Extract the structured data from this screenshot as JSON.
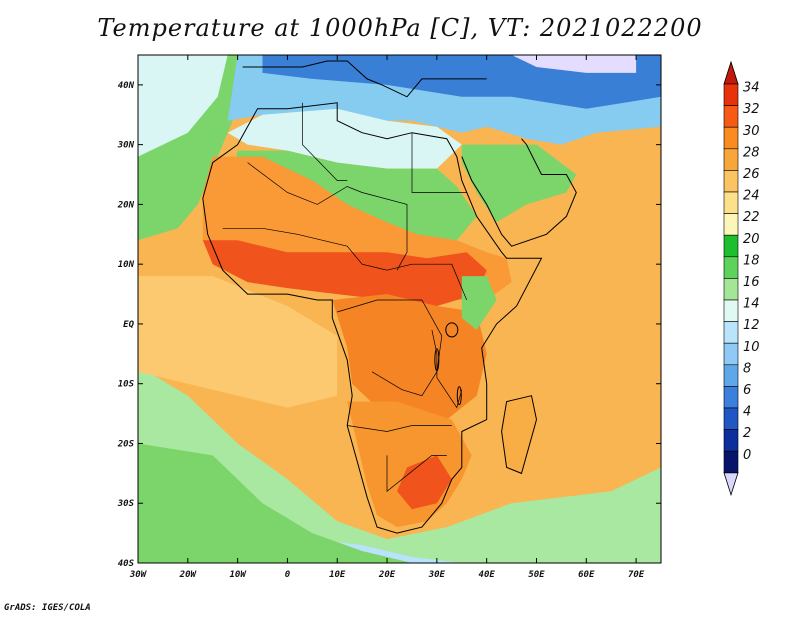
{
  "title": "Temperature at 1000hPa [C], VT: 2021022200",
  "credit": "GrADS: IGES/COLA",
  "map": {
    "lon_range": [
      -30,
      75
    ],
    "lat_range": [
      -40,
      45
    ],
    "x_ticks": [
      "30W",
      "20W",
      "10W",
      "0",
      "10E",
      "20E",
      "30E",
      "40E",
      "50E",
      "60E",
      "70E"
    ],
    "y_ticks": [
      "40N",
      "30N",
      "20N",
      "10N",
      "EQ",
      "10S",
      "20S",
      "30S",
      "40S"
    ]
  },
  "colorbar": {
    "levels": [
      "34",
      "32",
      "30",
      "28",
      "26",
      "24",
      "22",
      "20",
      "18",
      "16",
      "14",
      "12",
      "10",
      "8",
      "6",
      "4",
      "2",
      "0"
    ],
    "colors": [
      "#e8330a",
      "#f65a14",
      "#fa8b1e",
      "#f8a53a",
      "#f9c461",
      "#fde08a",
      "#fdf6b9",
      "#1fbe2e",
      "#5ed35b",
      "#a3e796",
      "#e0faf3",
      "#b9e4fb",
      "#8ecaf5",
      "#5ea8ea",
      "#3a80dc",
      "#2156c4",
      "#0d2f9e",
      "#06156a"
    ],
    "top_arrow_color": "#c4180b",
    "bottom_arrow_color": "#d8d8f8"
  },
  "field_colors": {
    "ocean_south_cool": "#a9e8a1",
    "ocean_warm": "#f8b552",
    "ocean_tropical": "#fcc870",
    "sahara": "#fa9a37",
    "sahel_hot": "#f0531c",
    "congo": "#f58425",
    "southern_africa": "#f7962f",
    "mediterranean": "#86ccf0",
    "europe": "#3a7fd6",
    "north_africa_mild": "#d9f6f4",
    "highlands": "#7bd56a",
    "madagascar": "#f9ae45",
    "deep_south": "#b8e3fb"
  },
  "legend": {
    "cold_cap": "#e4ddff"
  }
}
